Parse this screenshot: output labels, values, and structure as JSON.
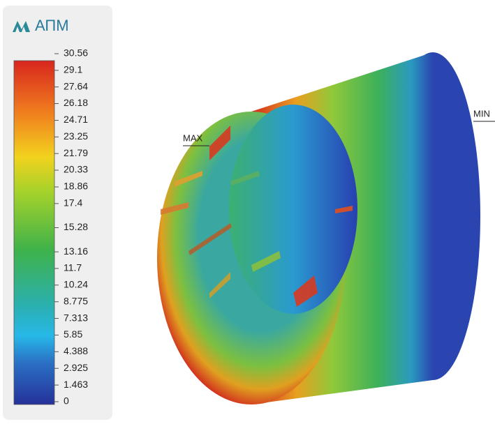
{
  "logo": {
    "text": "АПМ"
  },
  "legend": {
    "range": [
      0,
      30.56
    ],
    "ticks": [
      30.56,
      29.1,
      27.64,
      26.18,
      24.71,
      23.25,
      21.79,
      20.33,
      18.86,
      17.4,
      15.28,
      13.16,
      11.7,
      10.24,
      8.775,
      7.313,
      5.85,
      4.388,
      2.925,
      1.463,
      0
    ]
  },
  "markers": {
    "max": "MAX",
    "min": "MIN"
  }
}
